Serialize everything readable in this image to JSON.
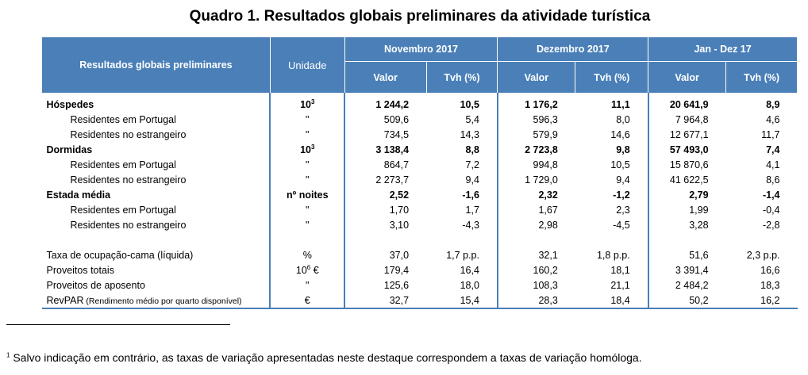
{
  "title": "Quadro 1. Resultados globais preliminares da atividade turística",
  "header": {
    "label": "Resultados globais preliminares",
    "unit": "Unidade",
    "periods": [
      "Novembro 2017",
      "Dezembro 2017",
      "Jan - Dez 17"
    ],
    "valor": "Valor",
    "tvh": "Tvh (%)"
  },
  "rows": [
    {
      "label": "Hóspedes",
      "unit": "10",
      "unit_sup": "3",
      "bold": true,
      "v": [
        "1 244,2",
        "10,5",
        "1 176,2",
        "11,1",
        "20 641,9",
        "8,9"
      ]
    },
    {
      "label": "Residentes em Portugal",
      "unit": "\"",
      "v": [
        "509,6",
        "5,4",
        "596,3",
        "8,0",
        "7 964,8",
        "4,6"
      ]
    },
    {
      "label": "Residentes no estrangeiro",
      "unit": "\"",
      "v": [
        "734,5",
        "14,3",
        "579,9",
        "14,6",
        "12 677,1",
        "11,7"
      ]
    },
    {
      "label": "Dormidas",
      "unit": "10",
      "unit_sup": "3",
      "bold": true,
      "v": [
        "3 138,4",
        "8,8",
        "2 723,8",
        "9,8",
        "57 493,0",
        "7,4"
      ]
    },
    {
      "label": "Residentes em Portugal",
      "unit": "\"",
      "v": [
        "864,7",
        "7,2",
        "994,8",
        "10,5",
        "15 870,6",
        "4,1"
      ]
    },
    {
      "label": "Residentes no estrangeiro",
      "unit": "\"",
      "v": [
        "2 273,7",
        "9,4",
        "1 729,0",
        "9,4",
        "41 622,5",
        "8,6"
      ]
    },
    {
      "label": "Estada média",
      "unit": "nº noites",
      "bold": true,
      "v": [
        "2,52",
        "-1,6",
        "2,32",
        "-1,2",
        "2,79",
        "-1,4"
      ]
    },
    {
      "label": "Residentes em Portugal",
      "unit": "\"",
      "v": [
        "1,70",
        "1,7",
        "1,67",
        "2,3",
        "1,99",
        "-0,4"
      ]
    },
    {
      "label": "Residentes no estrangeiro",
      "unit": "\"",
      "v": [
        "3,10",
        "-4,3",
        "2,98",
        "-4,5",
        "3,28",
        "-2,8"
      ]
    },
    {
      "blank": true
    },
    {
      "label": "Taxa de ocupação-cama (líquida)",
      "unit": "%",
      "v": [
        "37,0",
        "1,7 p.p.",
        "32,1",
        "1,8 p.p.",
        "51,6",
        "2,3 p.p."
      ]
    },
    {
      "label": "Proveitos totais",
      "unit": "10",
      "unit_sup": "6",
      "unit_suffix": " €",
      "v": [
        "179,4",
        "16,4",
        "160,2",
        "18,1",
        "3 391,4",
        "16,6"
      ]
    },
    {
      "label": "Proveitos de aposento",
      "unit": "\"",
      "v": [
        "125,6",
        "18,0",
        "108,3",
        "21,1",
        "2 484,2",
        "18,3"
      ]
    },
    {
      "label": "RevPAR",
      "label_note": " (Rendimento médio por quarto disponível)",
      "unit": "€",
      "v": [
        "32,7",
        "15,4",
        "28,3",
        "18,4",
        "50,2",
        "16,2"
      ]
    }
  ],
  "footnote": {
    "mark": "1",
    "text": " Salvo indicação em contrário, as taxas de variação apresentadas neste destaque correspondem a taxas de variação homóloga."
  }
}
